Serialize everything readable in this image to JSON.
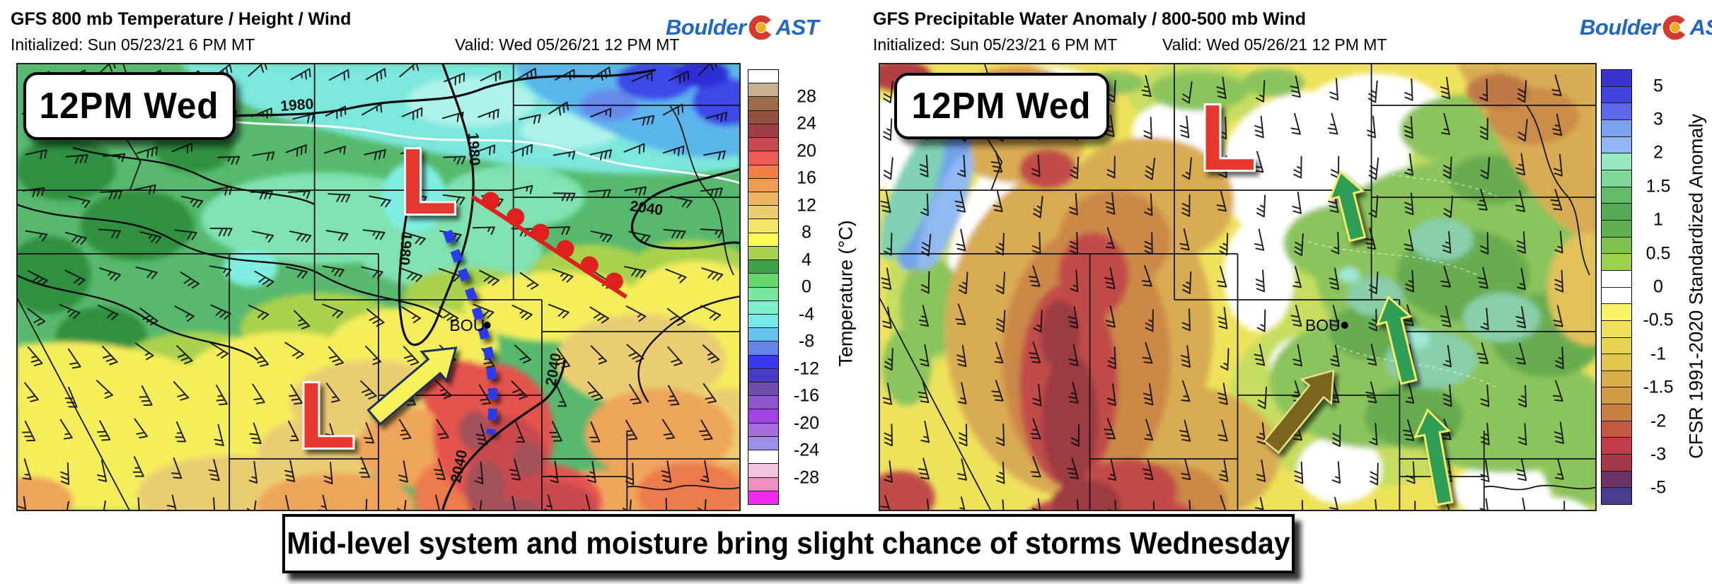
{
  "brand": {
    "text_left": "Boulder",
    "text_right": "AST",
    "blue": "#2166C4",
    "c_red": "#D6392E",
    "c_gold": "#EFAE1F"
  },
  "caption": "Mid-level system and moisture bring slight chance of storms Wednesday",
  "panels": {
    "left": {
      "title": "GFS 800 mb Temperature / Height / Wind",
      "initialized": "Initialized: Sun 05/23/21 6 PM MT",
      "valid": "Valid: Wed 05/26/21 12 PM MT",
      "badge": "12PM Wed",
      "station": "BOU",
      "low_symbol": "L",
      "height_labels": [
        "1980",
        "1980",
        "1980",
        "2040",
        "2040",
        "2040"
      ],
      "colorbar": {
        "title": "Temperature (°C)",
        "ticks": [
          "28",
          "24",
          "20",
          "16",
          "12",
          "8",
          "4",
          "0",
          "-4",
          "-8",
          "-12",
          "-16",
          "-20",
          "-24",
          "-28"
        ],
        "tick_start": 2,
        "tick_step": 2,
        "cells": [
          "#FFFFFF",
          "#C9AF92",
          "#9E6B47",
          "#93503E",
          "#A23C47",
          "#C84A50",
          "#EE5B55",
          "#F07E43",
          "#F09B52",
          "#EDB463",
          "#EECD6D",
          "#F2E566",
          "#FCFC55",
          "#A7D150",
          "#41A147",
          "#64D66C",
          "#77E89E",
          "#7BEECB",
          "#74E9E9",
          "#63C3EC",
          "#6385E8",
          "#3A3AF0",
          "#4A3AC8",
          "#6F4DAE",
          "#8E55CE",
          "#A243E8",
          "#A66ADE",
          "#9D8DE9",
          "#FFFFFF",
          "#F2C4DE",
          "#EE8FC0",
          "#F129F1"
        ]
      }
    },
    "right": {
      "title": "GFS Precipitable Water Anomaly / 800-500 mb Wind",
      "initialized": "Initialized: Sun 05/23/21 6 PM MT",
      "valid": "Valid: Wed 05/26/21 12 PM MT",
      "badge": "12PM Wed",
      "station": "BOU",
      "low_symbol": "L",
      "colorbar": {
        "title": "CFSR 1991-2020 Standardized Anomaly",
        "ticks": [
          "5",
          "3",
          "2",
          "1.5",
          "1",
          "0.5",
          "0",
          "-0.5",
          "-1",
          "-1.5",
          "-2",
          "-3",
          "-5"
        ],
        "tick_start": 1,
        "tick_step": 2,
        "cells": [
          "#3A35CE",
          "#4343E2",
          "#5B68E8",
          "#7BA2EE",
          "#8FB6F0",
          "#98EAC4",
          "#7ED898",
          "#63BB69",
          "#55AB55",
          "#5FAE4F",
          "#7FC24F",
          "#9AD14C",
          "#FFFFFF",
          "#FFFFFF",
          "#F6F465",
          "#EFE25A",
          "#E7D352",
          "#E0C44B",
          "#D9AE47",
          "#D29A45",
          "#CB7F41",
          "#C55A3F",
          "#C23E4A",
          "#A83646",
          "#6A3364",
          "#4A3A90"
        ]
      }
    }
  }
}
